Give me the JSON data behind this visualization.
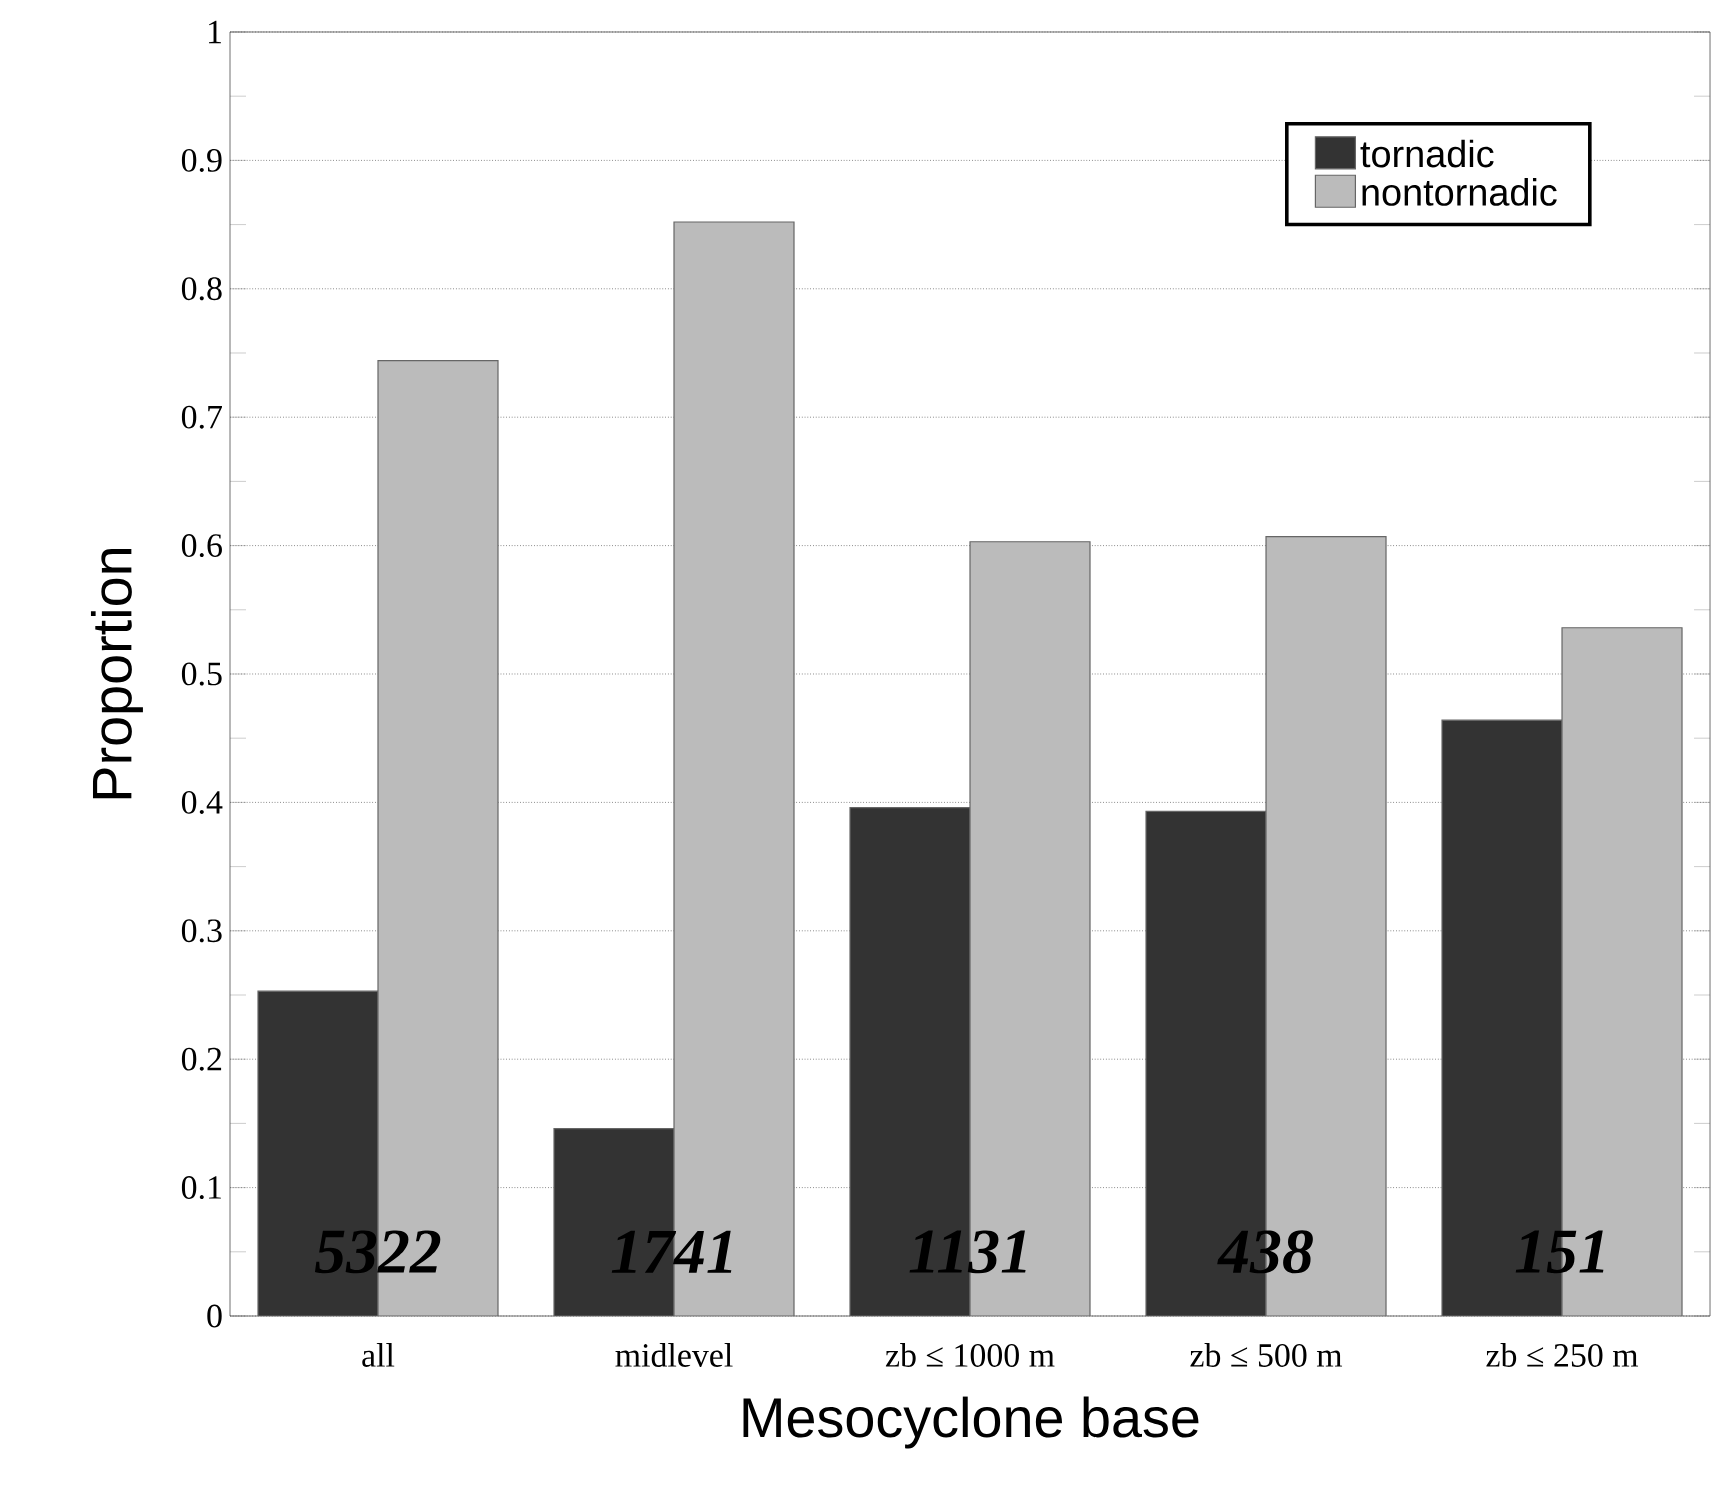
{
  "chart_data": {
    "type": "bar",
    "xlabel": "Mesocyclone base",
    "ylabel": "Proportion",
    "categories": [
      "all",
      "midlevel",
      "zb ≤ 1000 m",
      "zb ≤ 500 m",
      "zb ≤ 250 m"
    ],
    "series": [
      {
        "name": "tornadic",
        "color": "#333333",
        "values": [
          0.253,
          0.146,
          0.396,
          0.393,
          0.464
        ]
      },
      {
        "name": "nontornadic",
        "color": "#bbbbbb",
        "values": [
          0.744,
          0.852,
          0.603,
          0.607,
          0.536
        ]
      }
    ],
    "ylim": [
      0,
      1
    ],
    "yticks": [
      0,
      0.1,
      0.2,
      0.3,
      0.4,
      0.5,
      0.6,
      0.7,
      0.8,
      0.9,
      1
    ],
    "grid": "y",
    "legend": "top right",
    "annotations": [
      {
        "text": "5322",
        "x": "all",
        "y": 0.05
      },
      {
        "text": "1741",
        "x": "midlevel",
        "y": 0.05
      },
      {
        "text": "1131",
        "x": "zb ≤ 1000 m",
        "y": 0.05
      },
      {
        "text": "438",
        "x": "zb ≤ 500 m",
        "y": 0.05
      },
      {
        "text": "151",
        "x": "zb ≤ 250 m",
        "y": 0.05
      }
    ]
  }
}
